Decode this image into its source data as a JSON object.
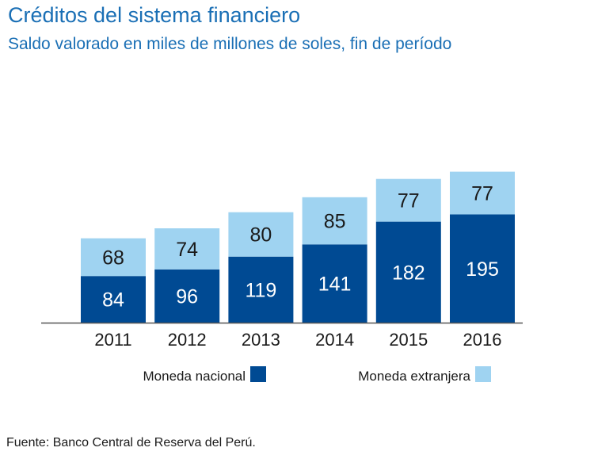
{
  "chart_data": {
    "type": "bar",
    "stacked": true,
    "title": "Créditos del sistema financiero",
    "subtitle": "Saldo valorado en miles de millones de soles, fin de período",
    "categories": [
      "2011",
      "2012",
      "2013",
      "2014",
      "2015",
      "2016"
    ],
    "series": [
      {
        "name": "Moneda nacional",
        "color": "#004a93",
        "label_color": "#ffffff",
        "values": [
          84,
          96,
          119,
          141,
          182,
          195
        ]
      },
      {
        "name": "Moneda extranjera",
        "color": "#9fd3f1",
        "label_color": "#1a1a1a",
        "values": [
          68,
          74,
          80,
          85,
          77,
          77
        ]
      }
    ],
    "ylim": [
      0,
      300
    ],
    "grid": false,
    "legend_position": "bottom"
  },
  "source": "Fuente: Banco Central de Reserva del Perú."
}
